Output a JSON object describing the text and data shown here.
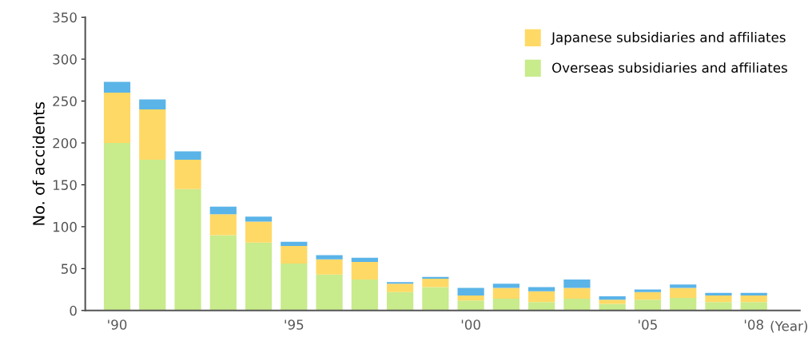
{
  "chart_data": {
    "type": "bar",
    "stacked": true,
    "ylabel": "No. of accidents",
    "xlabel": "(Year)",
    "categories": [
      "'90",
      null,
      null,
      null,
      null,
      "'95",
      null,
      null,
      null,
      null,
      "'00",
      null,
      null,
      null,
      null,
      "'05",
      null,
      null,
      "'08"
    ],
    "series": [
      {
        "name": "Overseas subsidiaries and affiliates",
        "color": "#c8eb8c",
        "values": [
          200,
          180,
          145,
          90,
          81,
          56,
          43,
          37,
          22,
          28,
          12,
          14,
          10,
          14,
          8,
          13,
          15,
          10,
          10
        ]
      },
      {
        "name": "Japanese subsidiaries and affiliates",
        "color": "#ffd966",
        "values": [
          60,
          60,
          35,
          25,
          25,
          21,
          18,
          21,
          10,
          10,
          6,
          13,
          13,
          13,
          5,
          9,
          12,
          8,
          8
        ]
      },
      {
        "color": "#5ab4e8",
        "values": [
          13,
          12,
          10,
          9,
          6,
          5,
          5,
          5,
          2,
          2,
          9,
          5,
          5,
          10,
          4,
          3,
          4,
          3,
          3
        ]
      }
    ],
    "ylim": [
      0,
      350
    ],
    "yticks": [
      0,
      50,
      100,
      150,
      200,
      250,
      300,
      350
    ],
    "grid": false,
    "legend": "top right"
  }
}
